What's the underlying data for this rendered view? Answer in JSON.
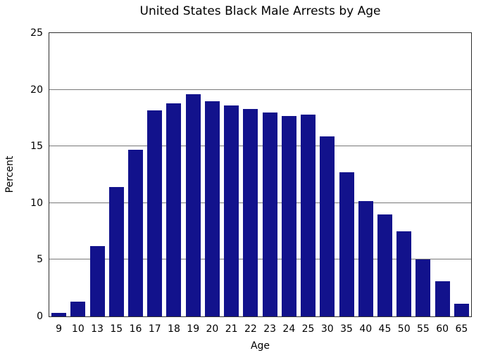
{
  "chart_data": {
    "type": "bar",
    "title": "United States Black Male Arrests by Age",
    "xlabel": "Age",
    "ylabel": "Percent",
    "categories": [
      "9",
      "10",
      "13",
      "15",
      "16",
      "17",
      "18",
      "19",
      "20",
      "21",
      "22",
      "23",
      "24",
      "25",
      "30",
      "35",
      "40",
      "45",
      "50",
      "55",
      "60",
      "65"
    ],
    "values": [
      0.3,
      1.3,
      6.2,
      11.4,
      14.7,
      18.2,
      18.8,
      19.6,
      19.0,
      18.6,
      18.3,
      18.0,
      17.7,
      17.8,
      15.9,
      12.7,
      10.2,
      9.0,
      7.5,
      5.0,
      3.1,
      1.1
    ],
    "ylim": [
      0,
      25
    ],
    "yticks": [
      0,
      5,
      10,
      15,
      20,
      25
    ],
    "grid": "horizontal",
    "legend": "none",
    "colors": {
      "bar": "#12128C",
      "gridline": "#787878",
      "spine": "#2e2e2e",
      "text": "#000000",
      "background": "#ffffff"
    }
  }
}
